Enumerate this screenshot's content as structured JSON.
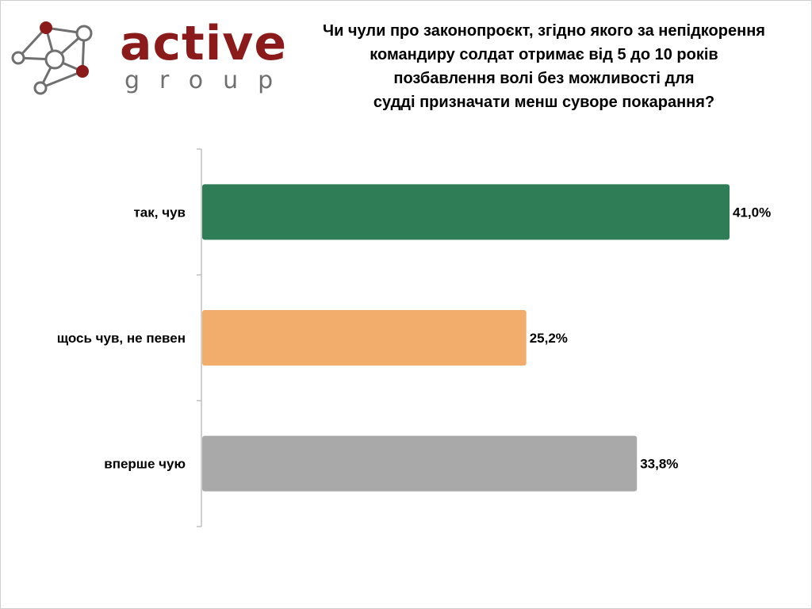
{
  "logo": {
    "word": "active",
    "sub": "group"
  },
  "title_lines": [
    "Чи чули про законопроєкт, згідно якого за непідкорення",
    "командиру солдат отримає від 5 до 10 років",
    "позбавлення волі без можливості для",
    "судді призначати менш суворе покарання?"
  ],
  "colors": {
    "brand_red": "#8b1a1a",
    "brand_gray": "#6f6f6f",
    "bar_green": "#2e7d57",
    "bar_orange": "#f2ad6c",
    "bar_gray": "#a9a9a9",
    "axis": "#bfbfbf"
  },
  "chart_data": {
    "type": "bar",
    "orientation": "horizontal",
    "title": "Чи чули про законопроєкт, згідно якого за непідкорення командиру солдат отримає від 5 до 10 років позбавлення волі без можливості для судді призначати менш суворе покарання?",
    "categories": [
      "так, чув",
      "щось чув, не певен",
      "вперше чую"
    ],
    "values": [
      41.0,
      25.2,
      33.8
    ],
    "value_labels": [
      "41,0%",
      "25,2%",
      "33,8%"
    ],
    "bar_colors": [
      "#2e7d57",
      "#f2ad6c",
      "#a9a9a9"
    ],
    "xlim": [
      0,
      41.0
    ],
    "unit": "%",
    "grid": false,
    "legend": "none"
  }
}
